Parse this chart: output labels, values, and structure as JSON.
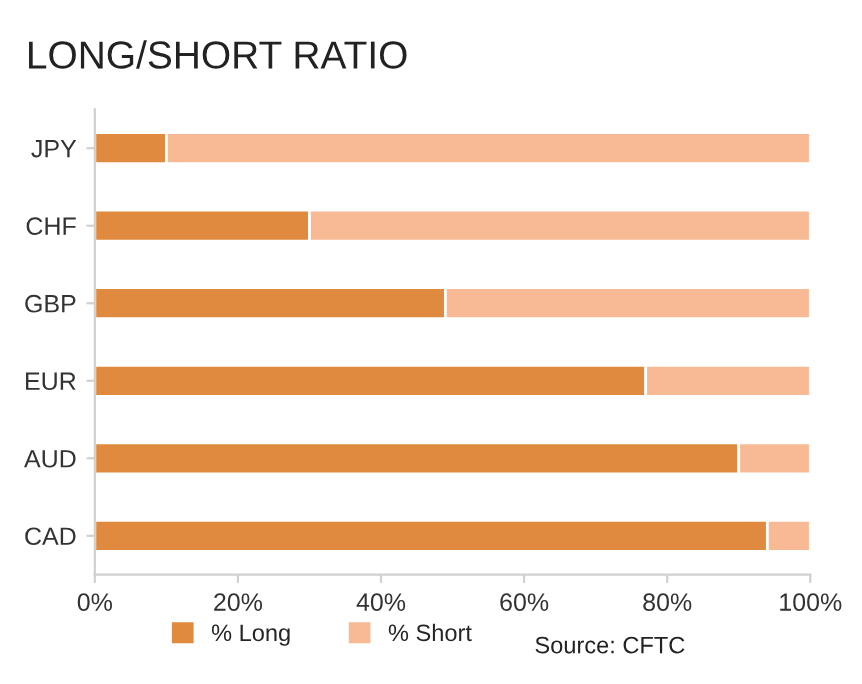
{
  "chart_data": {
    "type": "bar",
    "title": "LONG/SHORT RATIO",
    "orientation": "horizontal",
    "stacked": true,
    "categories": [
      "JPY",
      "CHF",
      "GBP",
      "EUR",
      "AUD",
      "CAD"
    ],
    "series": [
      {
        "name": "% Long",
        "color": "#e08a3f",
        "values": [
          10,
          30,
          49,
          77,
          90,
          94
        ]
      },
      {
        "name": "% Short",
        "color": "#f8b995",
        "values": [
          90,
          70,
          51,
          23,
          10,
          6
        ]
      }
    ],
    "xlim": [
      0,
      100
    ],
    "xticks": [
      {
        "value": 0,
        "label": "0%"
      },
      {
        "value": 20,
        "label": "20%"
      },
      {
        "value": 40,
        "label": "40%"
      },
      {
        "value": 60,
        "label": "60%"
      },
      {
        "value": 80,
        "label": "80%"
      },
      {
        "value": 100,
        "label": "100%"
      }
    ],
    "grid": false,
    "legend": "bottom",
    "annotations": [
      "Source: CFTC"
    ]
  }
}
